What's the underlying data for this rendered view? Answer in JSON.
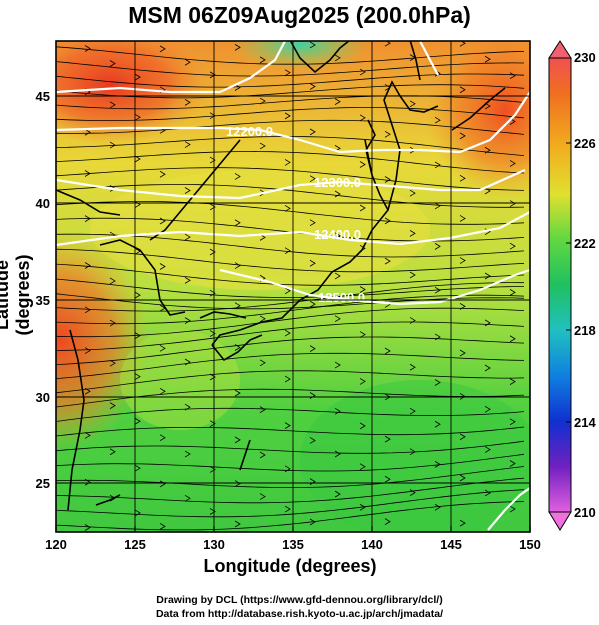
{
  "title": "MSM 06Z09Aug2025 (200.0hPa)",
  "xlabel": "Longitude (degrees)",
  "ylabel": "Latitude  (degrees)",
  "xticks": [
    "120",
    "125",
    "130",
    "135",
    "140",
    "145",
    "150"
  ],
  "yticks": [
    "25",
    "30",
    "35",
    "40",
    "45"
  ],
  "colorbar": {
    "ticks": [
      "230",
      "226",
      "222",
      "218",
      "214",
      "210"
    ],
    "colors": [
      "#f06070",
      "#e84030",
      "#f07020",
      "#f0a020",
      "#e8d830",
      "#a0e030",
      "#40d040",
      "#20c070",
      "#20c0c0",
      "#1080e0",
      "#1030d0",
      "#6020c0",
      "#c020d0",
      "#f060e0"
    ]
  },
  "contours": [
    "12200.0",
    "12300.0",
    "12400.0",
    "12500.0"
  ],
  "credits": {
    "line1": "Drawing by DCL (https://www.gfd-dennou.org/library/dcl/)",
    "line2": "Data from http://database.rish.kyoto-u.ac.jp/arch/jmadata/"
  }
}
